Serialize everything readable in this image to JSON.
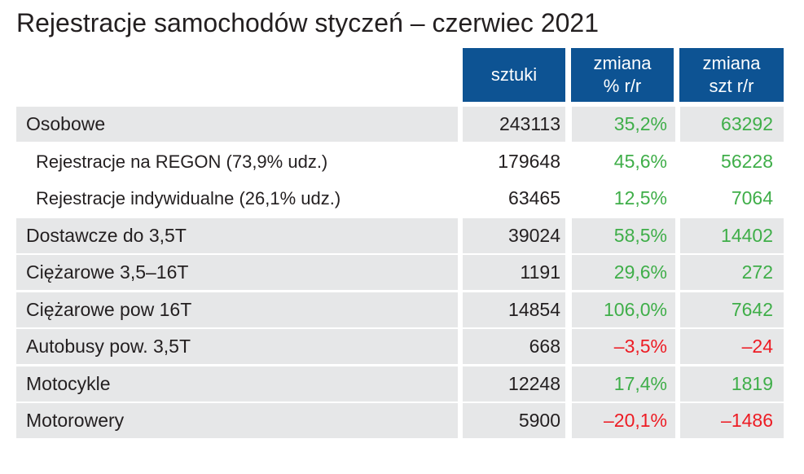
{
  "title": "Rejestracje samochodów styczeń – czerwiec 2021",
  "colors": {
    "header_bg": "#0d5393",
    "positive": "#3fae49",
    "negative": "#ed1c24",
    "row_shade": "#e6e7e8"
  },
  "chart_data": {
    "type": "table",
    "title": "Rejestracje samochodów styczeń – czerwiec 2021",
    "columns": [
      {
        "line1": "sztuki",
        "line2": ""
      },
      {
        "line1": "zmiana",
        "line2": "% r/r"
      },
      {
        "line1": "zmiana",
        "line2": "szt r/r"
      }
    ],
    "rows": [
      {
        "label": "Osobowe",
        "sztuki": "243113",
        "zmiana_pct": "35,2%",
        "zmiana_szt": "63292",
        "sign": "pos",
        "shaded": true,
        "sub": false
      },
      {
        "label": "Rejestracje na REGON (73,9% udz.)",
        "sztuki": "179648",
        "zmiana_pct": "45,6%",
        "zmiana_szt": "56228",
        "sign": "pos",
        "shaded": false,
        "sub": true
      },
      {
        "label": "Rejestracje indywidualne (26,1% udz.)",
        "sztuki": "63465",
        "zmiana_pct": "12,5%",
        "zmiana_szt": "7064",
        "sign": "pos",
        "shaded": false,
        "sub": true
      },
      {
        "label": "Dostawcze do 3,5T",
        "sztuki": "39024",
        "zmiana_pct": "58,5%",
        "zmiana_szt": "14402",
        "sign": "pos",
        "shaded": true,
        "sub": false
      },
      {
        "label": "Ciężarowe 3,5–16T",
        "sztuki": "1191",
        "zmiana_pct": "29,6%",
        "zmiana_szt": "272",
        "sign": "pos",
        "shaded": true,
        "sub": false
      },
      {
        "label": "Ciężarowe pow 16T",
        "sztuki": "14854",
        "zmiana_pct": "106,0%",
        "zmiana_szt": "7642",
        "sign": "pos",
        "shaded": true,
        "sub": false
      },
      {
        "label": "Autobusy pow. 3,5T",
        "sztuki": "668",
        "zmiana_pct": "–3,5%",
        "zmiana_szt": "–24",
        "sign": "neg",
        "shaded": true,
        "sub": false
      },
      {
        "label": "Motocykle",
        "sztuki": "12248",
        "zmiana_pct": "17,4%",
        "zmiana_szt": "1819",
        "sign": "pos",
        "shaded": true,
        "sub": false
      },
      {
        "label": "Motorowery",
        "sztuki": "5900",
        "zmiana_pct": "–20,1%",
        "zmiana_szt": "–1486",
        "sign": "neg",
        "shaded": true,
        "sub": false
      }
    ]
  }
}
